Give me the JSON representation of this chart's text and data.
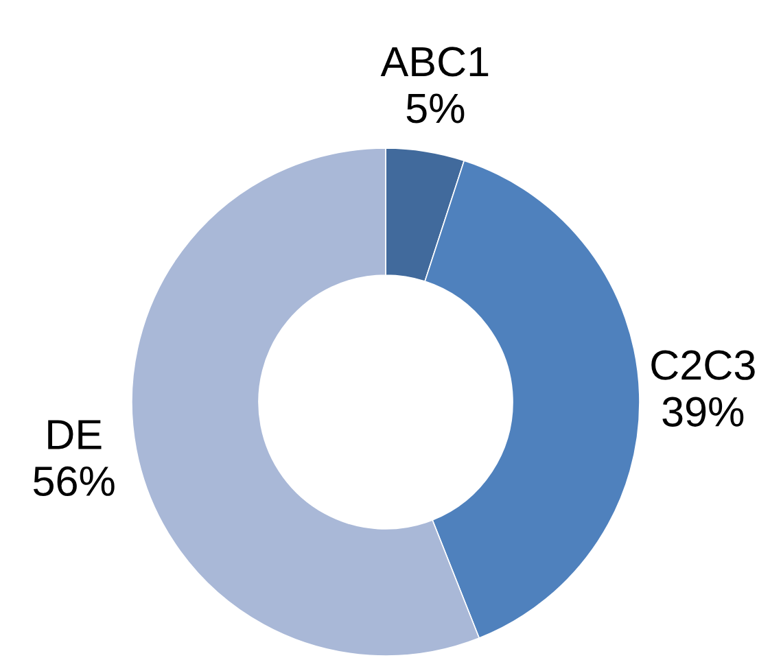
{
  "chart_data": {
    "type": "donut",
    "categories": [
      "ABC1",
      "C2C3",
      "DE"
    ],
    "values": [
      5,
      39,
      56
    ],
    "colors": [
      "#416a9c",
      "#4f81bd",
      "#a9b8d7"
    ],
    "value_labels": [
      "5%",
      "39%",
      "56%"
    ]
  }
}
